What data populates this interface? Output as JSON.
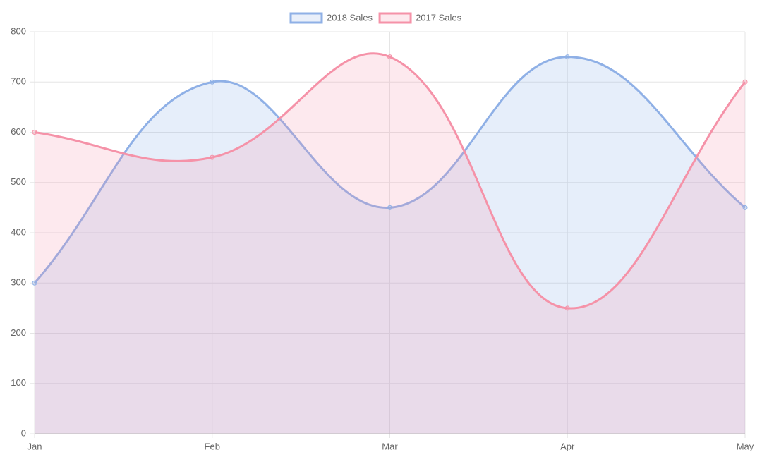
{
  "chart_data": {
    "type": "line",
    "categories": [
      "Jan",
      "Feb",
      "Mar",
      "Apr",
      "May"
    ],
    "series": [
      {
        "name": "2018 Sales",
        "color": "#8fb0e6",
        "values": [
          300,
          700,
          450,
          750,
          450
        ]
      },
      {
        "name": "2017 Sales",
        "color": "#f592a8",
        "values": [
          600,
          550,
          750,
          250,
          700
        ]
      }
    ],
    "ylim": [
      0,
      800
    ],
    "yticks": [
      0,
      100,
      200,
      300,
      400,
      500,
      600,
      700,
      800
    ],
    "grid": true,
    "fill": true,
    "legend": "top"
  }
}
